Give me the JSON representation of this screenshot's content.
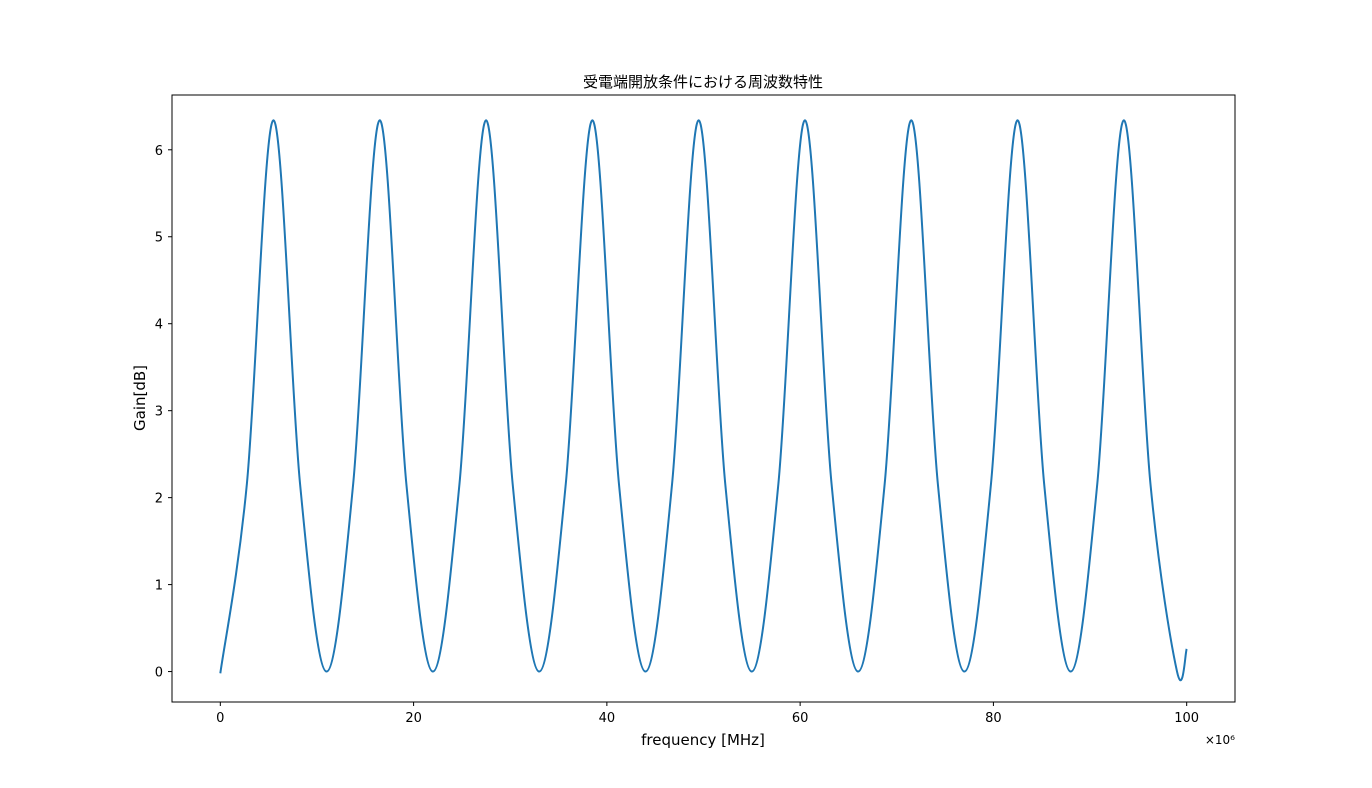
{
  "chart_data": {
    "type": "line",
    "title": "受電端開放条件における周波数特性",
    "xlabel": "frequency [MHz]",
    "ylabel": "Gain[dB]",
    "x_offset_label": "×10⁶",
    "xlim": [
      -5000000,
      105000000
    ],
    "ylim": [
      -0.35,
      6.63
    ],
    "xticks": [
      0,
      20000000,
      40000000,
      60000000,
      80000000,
      100000000
    ],
    "xtick_labels": [
      "0",
      "20",
      "40",
      "60",
      "80",
      "100"
    ],
    "yticks": [
      0,
      1,
      2,
      3,
      4,
      5,
      6
    ],
    "ytick_labels": [
      "0",
      "1",
      "2",
      "3",
      "4",
      "5",
      "6"
    ],
    "grid": false,
    "series": [
      {
        "color": "#1f77b4",
        "x": [
          0,
          2750000,
          5500000,
          8250000,
          11000000,
          13750000,
          16500000,
          19250000,
          22000000,
          24750000,
          27500000,
          30250000,
          33000000,
          35750000,
          38500000,
          41250000,
          44000000,
          46750000,
          49500000,
          52250000,
          55000000,
          57750000,
          60500000,
          63250000,
          66000000,
          68750000,
          71500000,
          74250000,
          77000000,
          79750000,
          82500000,
          85250000,
          88000000,
          90750000,
          93500000,
          96250000,
          99000000,
          100000000
        ],
        "y": [
          -0.02,
          2.16,
          6.34,
          2.16,
          0.0,
          2.16,
          6.34,
          2.16,
          0.0,
          2.16,
          6.34,
          2.16,
          0.0,
          2.16,
          6.34,
          2.16,
          0.0,
          2.16,
          6.34,
          2.16,
          0.0,
          2.16,
          6.34,
          2.16,
          0.0,
          2.16,
          6.34,
          2.16,
          0.0,
          2.16,
          6.34,
          2.16,
          0.0,
          2.16,
          6.34,
          2.16,
          0.0,
          0.26
        ]
      }
    ]
  }
}
